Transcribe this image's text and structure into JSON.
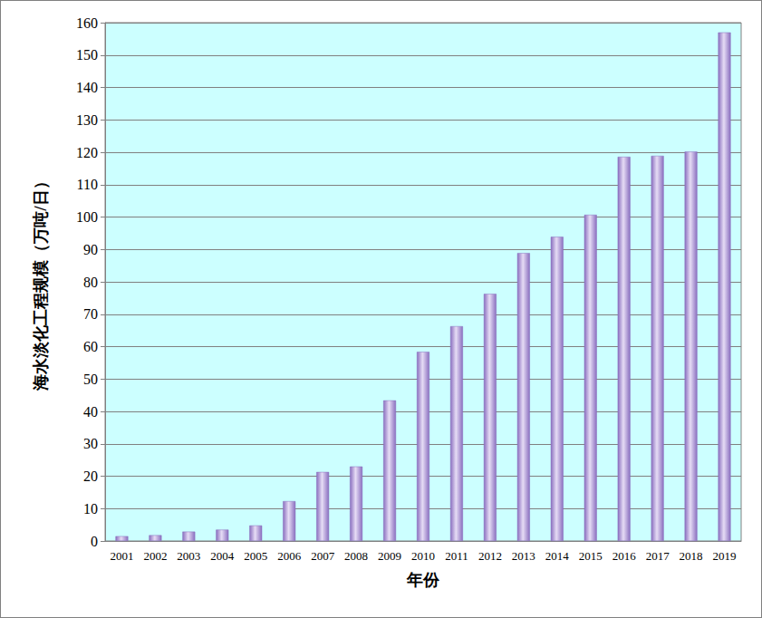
{
  "chart_data": {
    "type": "bar",
    "x_label": "年份",
    "y_label": "海水淡化工程规模（万吨/日）",
    "categories": [
      "2001",
      "2002",
      "2003",
      "2004",
      "2005",
      "2006",
      "2007",
      "2008",
      "2009",
      "2010",
      "2011",
      "2012",
      "2013",
      "2014",
      "2015",
      "2016",
      "2017",
      "2018",
      "2019"
    ],
    "values": [
      1.5,
      1.8,
      2.9,
      3.5,
      4.8,
      12.3,
      21.3,
      23.0,
      43.4,
      58.4,
      66.3,
      76.3,
      88.9,
      93.9,
      100.7,
      118.6,
      118.9,
      120.2,
      157.0
    ],
    "color": "#8a6fbf",
    "ylim": [
      0,
      160
    ],
    "yticks": [
      0,
      10,
      20,
      30,
      40,
      50,
      60,
      70,
      80,
      90,
      100,
      110,
      120,
      130,
      140,
      150,
      160
    ],
    "grid": true
  }
}
